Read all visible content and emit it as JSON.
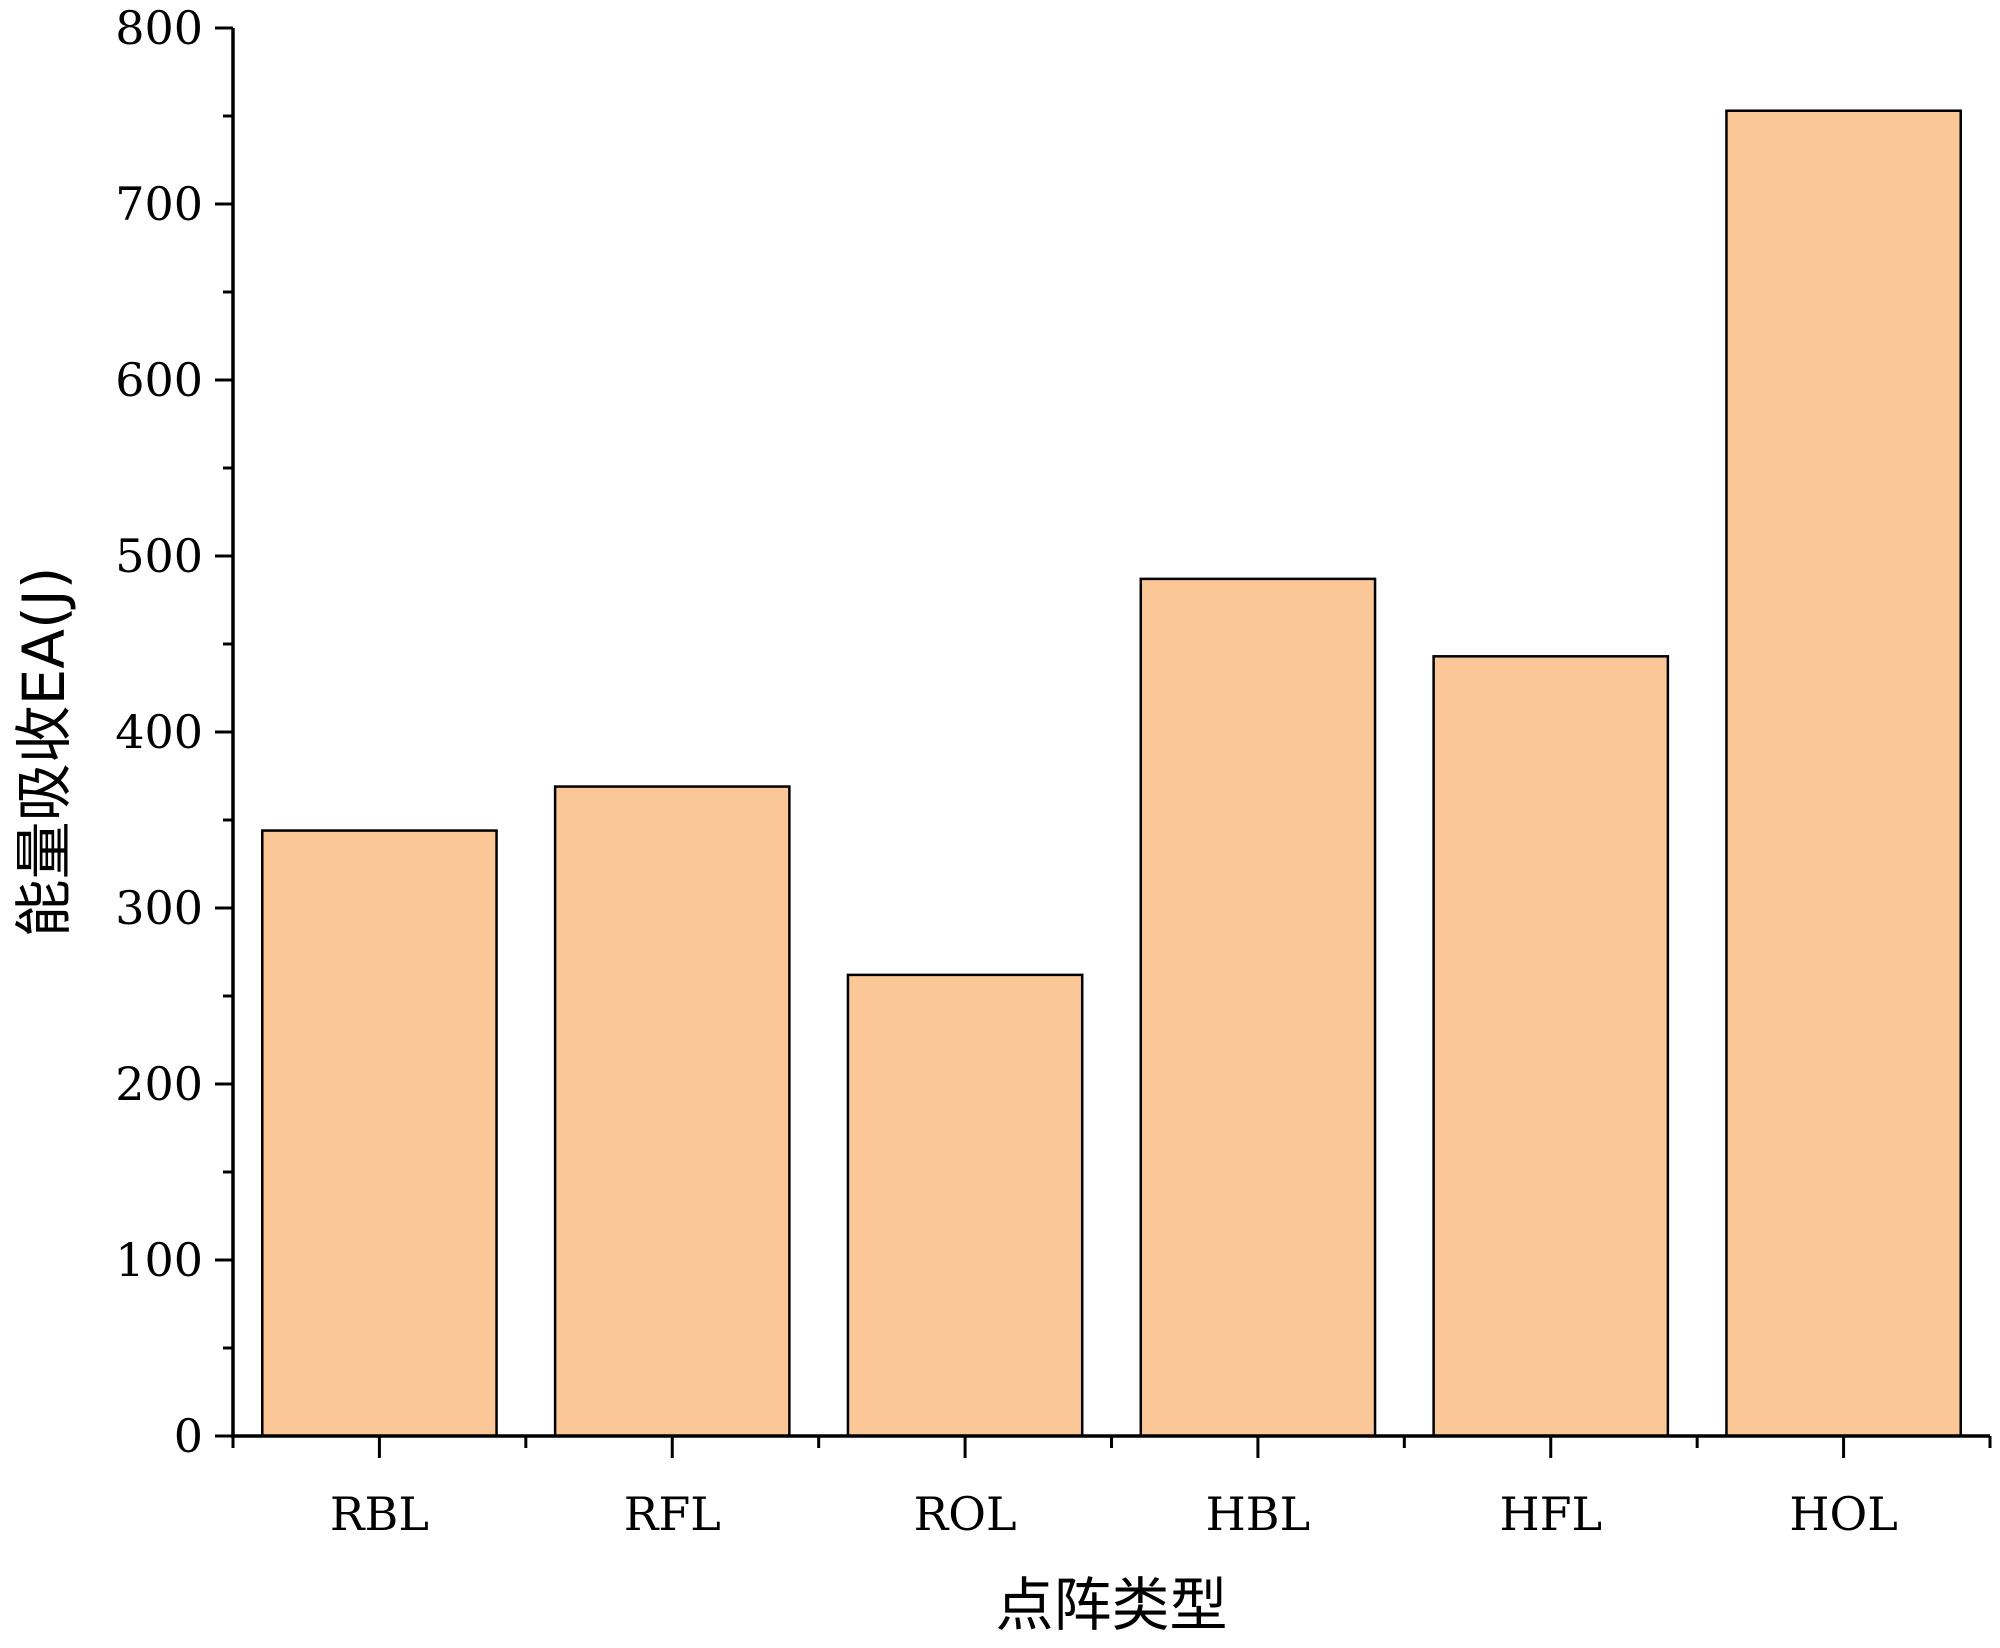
{
  "chart_data": {
    "type": "bar",
    "categories": [
      "RBL",
      "RFL",
      "ROL",
      "HBL",
      "HFL",
      "HOL"
    ],
    "values": [
      344,
      369,
      262,
      487,
      443,
      753
    ],
    "xlabel": "点阵类型",
    "ylabel": "能量吸收EA(J)",
    "ylim": [
      0,
      800
    ],
    "yticks": [
      0,
      100,
      200,
      300,
      400,
      500,
      600,
      700,
      800
    ],
    "grid": false,
    "legend": "none"
  },
  "colors": {
    "bar_fill": "#FBC797",
    "bar_stroke": "#000000",
    "axis": "#000000"
  }
}
